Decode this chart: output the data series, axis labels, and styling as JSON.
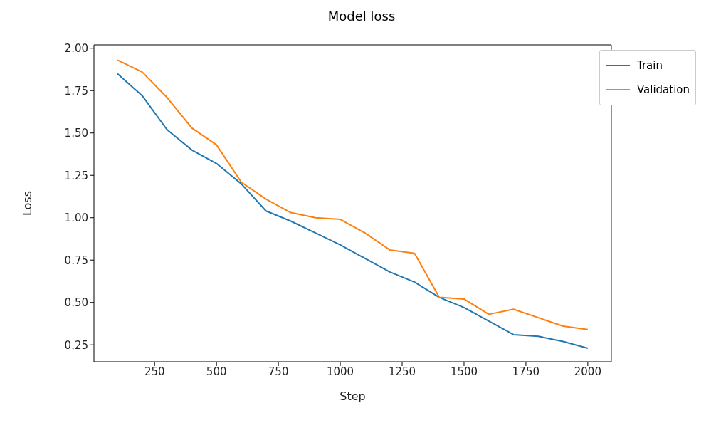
{
  "chart_data": {
    "type": "line",
    "title": "Model loss",
    "xlabel": "Step",
    "ylabel": "Loss",
    "x": [
      100,
      200,
      300,
      400,
      500,
      600,
      700,
      800,
      900,
      1000,
      1100,
      1200,
      1300,
      1400,
      1500,
      1600,
      1700,
      1800,
      1900,
      2000
    ],
    "series": [
      {
        "name": "Train",
        "color": "#1f77b4",
        "values": [
          1.85,
          1.72,
          1.52,
          1.4,
          1.32,
          1.2,
          1.04,
          0.98,
          0.91,
          0.84,
          0.76,
          0.68,
          0.62,
          0.53,
          0.47,
          0.39,
          0.31,
          0.3,
          0.27,
          0.23
        ]
      },
      {
        "name": "Validation",
        "color": "#ff7f0e",
        "values": [
          1.93,
          1.86,
          1.71,
          1.53,
          1.43,
          1.21,
          1.11,
          1.03,
          1.0,
          0.99,
          0.91,
          0.81,
          0.79,
          0.53,
          0.52,
          0.43,
          0.46,
          0.41,
          0.36,
          0.34
        ]
      }
    ],
    "xlim": [
      5,
      2095
    ],
    "xticks": [
      250,
      500,
      750,
      1000,
      1250,
      1500,
      1750,
      2000
    ],
    "ylim": [
      0.15,
      2.02
    ],
    "yticks": [
      {
        "value": 0.25,
        "label": "0.25"
      },
      {
        "value": 0.5,
        "label": "0.50"
      },
      {
        "value": 0.75,
        "label": "0.75"
      },
      {
        "value": 1,
        "label": "1.00"
      },
      {
        "value": 1.25,
        "label": "1.25"
      },
      {
        "value": 1.5,
        "label": "1.50"
      },
      {
        "value": 1.75,
        "label": "1.75"
      },
      {
        "value": 2,
        "label": "2.00"
      }
    ],
    "grid": false,
    "legend": "top right",
    "marker": "none",
    "line_style": "solid"
  }
}
